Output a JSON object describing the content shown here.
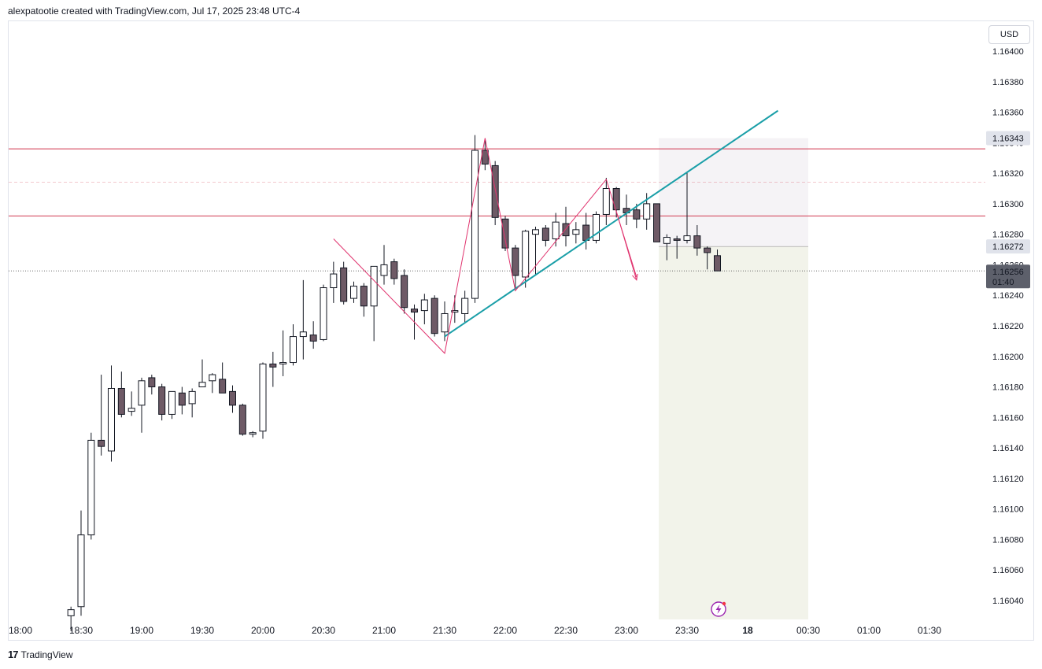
{
  "header": {
    "text": "alexpatootie created with TradingView.com, Jul 17, 2025 23:48 UTC-4"
  },
  "currency_label": "USD",
  "footer": {
    "logo": "17",
    "brand": "TradingView"
  },
  "colors": {
    "up_body": "#ffffff",
    "down_body": "#6e5a66",
    "candle_border": "#131722",
    "level_line": "#d0384f",
    "trend_line": "#1a9fa8",
    "pattern_line": "#e0336e",
    "short_risk_zone": "#f5f3f6",
    "short_target_zone": "#f2f3ea",
    "price_label_bg": "#e0e3eb",
    "current_price_bg": "#5d606b"
  },
  "chart_data": {
    "type": "candlestick",
    "title": "",
    "interval_minutes": 5,
    "x_range": [
      "17:55",
      "01:50"
    ],
    "ylim": [
      1.16026,
      1.16414
    ],
    "y_ticks": [
      "1.16040",
      "1.16060",
      "1.16080",
      "1.16100",
      "1.16120",
      "1.16140",
      "1.16160",
      "1.16180",
      "1.16200",
      "1.16220",
      "1.16240",
      "1.16260",
      "1.16280",
      "1.16300",
      "1.16320",
      "1.16340",
      "1.16360",
      "1.16380",
      "1.16400"
    ],
    "x_ticks": [
      {
        "t": "18:00",
        "label": "18:00"
      },
      {
        "t": "18:30",
        "label": "18:30"
      },
      {
        "t": "19:00",
        "label": "19:00"
      },
      {
        "t": "19:30",
        "label": "19:30"
      },
      {
        "t": "20:00",
        "label": "20:00"
      },
      {
        "t": "20:30",
        "label": "20:30"
      },
      {
        "t": "21:00",
        "label": "21:00"
      },
      {
        "t": "21:30",
        "label": "21:30"
      },
      {
        "t": "22:00",
        "label": "22:00"
      },
      {
        "t": "22:30",
        "label": "22:30"
      },
      {
        "t": "23:00",
        "label": "23:00"
      },
      {
        "t": "23:30",
        "label": "23:30"
      },
      {
        "t": "00:00",
        "label": "18",
        "bold": true
      },
      {
        "t": "00:30",
        "label": "00:30"
      },
      {
        "t": "01:00",
        "label": "01:00"
      },
      {
        "t": "01:30",
        "label": "01:30"
      }
    ],
    "candles": [
      {
        "t": "18:25",
        "o": 1.1603,
        "h": 1.16036,
        "l": 1.1602,
        "c": 1.16034
      },
      {
        "t": "18:30",
        "o": 1.16036,
        "h": 1.16099,
        "l": 1.1603,
        "c": 1.16083
      },
      {
        "t": "18:35",
        "o": 1.16083,
        "h": 1.1615,
        "l": 1.1608,
        "c": 1.16145
      },
      {
        "t": "18:40",
        "o": 1.16145,
        "h": 1.16188,
        "l": 1.16135,
        "c": 1.16141
      },
      {
        "t": "18:45",
        "o": 1.16138,
        "h": 1.16194,
        "l": 1.16131,
        "c": 1.16179
      },
      {
        "t": "18:50",
        "o": 1.16179,
        "h": 1.1619,
        "l": 1.1616,
        "c": 1.16162
      },
      {
        "t": "18:55",
        "o": 1.16164,
        "h": 1.16177,
        "l": 1.16161,
        "c": 1.16166
      },
      {
        "t": "19:00",
        "o": 1.16168,
        "h": 1.16186,
        "l": 1.1615,
        "c": 1.16184
      },
      {
        "t": "19:05",
        "o": 1.16186,
        "h": 1.16188,
        "l": 1.16175,
        "c": 1.1618
      },
      {
        "t": "19:10",
        "o": 1.1618,
        "h": 1.16182,
        "l": 1.16158,
        "c": 1.16162
      },
      {
        "t": "19:15",
        "o": 1.16162,
        "h": 1.16177,
        "l": 1.16159,
        "c": 1.16177
      },
      {
        "t": "19:20",
        "o": 1.16176,
        "h": 1.1618,
        "l": 1.16162,
        "c": 1.16168
      },
      {
        "t": "19:25",
        "o": 1.16169,
        "h": 1.16179,
        "l": 1.1616,
        "c": 1.16177
      },
      {
        "t": "19:30",
        "o": 1.1618,
        "h": 1.16198,
        "l": 1.1618,
        "c": 1.16183
      },
      {
        "t": "19:35",
        "o": 1.16184,
        "h": 1.16189,
        "l": 1.16176,
        "c": 1.16188
      },
      {
        "t": "19:40",
        "o": 1.16185,
        "h": 1.16196,
        "l": 1.16176,
        "c": 1.16176
      },
      {
        "t": "19:45",
        "o": 1.16177,
        "h": 1.16181,
        "l": 1.16163,
        "c": 1.16168
      },
      {
        "t": "19:50",
        "o": 1.16168,
        "h": 1.16169,
        "l": 1.16148,
        "c": 1.16149
      },
      {
        "t": "19:55",
        "o": 1.16149,
        "h": 1.16151,
        "l": 1.16147,
        "c": 1.1615
      },
      {
        "t": "20:00",
        "o": 1.16151,
        "h": 1.16196,
        "l": 1.16146,
        "c": 1.16195
      },
      {
        "t": "20:05",
        "o": 1.16195,
        "h": 1.16203,
        "l": 1.1618,
        "c": 1.16193
      },
      {
        "t": "20:10",
        "o": 1.16195,
        "h": 1.16217,
        "l": 1.16187,
        "c": 1.16196
      },
      {
        "t": "20:15",
        "o": 1.16196,
        "h": 1.16221,
        "l": 1.16194,
        "c": 1.16213
      },
      {
        "t": "20:20",
        "o": 1.16213,
        "h": 1.1625,
        "l": 1.16198,
        "c": 1.16216
      },
      {
        "t": "20:25",
        "o": 1.16214,
        "h": 1.16223,
        "l": 1.16205,
        "c": 1.1621
      },
      {
        "t": "20:30",
        "o": 1.16211,
        "h": 1.16247,
        "l": 1.1621,
        "c": 1.16245
      },
      {
        "t": "20:35",
        "o": 1.16245,
        "h": 1.16262,
        "l": 1.16235,
        "c": 1.16254
      },
      {
        "t": "20:40",
        "o": 1.16258,
        "h": 1.16262,
        "l": 1.16234,
        "c": 1.16236
      },
      {
        "t": "20:45",
        "o": 1.16238,
        "h": 1.16249,
        "l": 1.16235,
        "c": 1.16246
      },
      {
        "t": "20:50",
        "o": 1.16246,
        "h": 1.16248,
        "l": 1.16226,
        "c": 1.16233
      },
      {
        "t": "20:55",
        "o": 1.16233,
        "h": 1.16259,
        "l": 1.1621,
        "c": 1.16259
      },
      {
        "t": "21:00",
        "o": 1.16253,
        "h": 1.16273,
        "l": 1.16247,
        "c": 1.1626
      },
      {
        "t": "21:05",
        "o": 1.16262,
        "h": 1.16264,
        "l": 1.16247,
        "c": 1.16251
      },
      {
        "t": "21:10",
        "o": 1.16253,
        "h": 1.16257,
        "l": 1.16228,
        "c": 1.16232
      },
      {
        "t": "21:15",
        "o": 1.16231,
        "h": 1.16234,
        "l": 1.16211,
        "c": 1.16229
      },
      {
        "t": "21:20",
        "o": 1.1623,
        "h": 1.16241,
        "l": 1.16221,
        "c": 1.16237
      },
      {
        "t": "21:25",
        "o": 1.16238,
        "h": 1.1624,
        "l": 1.16213,
        "c": 1.16215
      },
      {
        "t": "21:30",
        "o": 1.16216,
        "h": 1.16236,
        "l": 1.1621,
        "c": 1.16228
      },
      {
        "t": "21:35",
        "o": 1.16229,
        "h": 1.1624,
        "l": 1.16222,
        "c": 1.1623
      },
      {
        "t": "21:40",
        "o": 1.16228,
        "h": 1.16243,
        "l": 1.16222,
        "c": 1.16238
      },
      {
        "t": "21:45",
        "o": 1.16238,
        "h": 1.16345,
        "l": 1.16235,
        "c": 1.16335
      },
      {
        "t": "21:50",
        "o": 1.16335,
        "h": 1.16342,
        "l": 1.16322,
        "c": 1.16326
      },
      {
        "t": "21:55",
        "o": 1.16325,
        "h": 1.16328,
        "l": 1.16286,
        "c": 1.16291
      },
      {
        "t": "22:00",
        "o": 1.1629,
        "h": 1.16292,
        "l": 1.16269,
        "c": 1.16271
      },
      {
        "t": "22:05",
        "o": 1.16271,
        "h": 1.16273,
        "l": 1.16244,
        "c": 1.16253
      },
      {
        "t": "22:10",
        "o": 1.16252,
        "h": 1.16283,
        "l": 1.16245,
        "c": 1.16282
      },
      {
        "t": "22:15",
        "o": 1.1628,
        "h": 1.16285,
        "l": 1.16253,
        "c": 1.16283
      },
      {
        "t": "22:20",
        "o": 1.16284,
        "h": 1.16286,
        "l": 1.16272,
        "c": 1.16276
      },
      {
        "t": "22:25",
        "o": 1.16277,
        "h": 1.16294,
        "l": 1.16272,
        "c": 1.16288
      },
      {
        "t": "22:30",
        "o": 1.16287,
        "h": 1.16298,
        "l": 1.16272,
        "c": 1.16279
      },
      {
        "t": "22:35",
        "o": 1.1628,
        "h": 1.16288,
        "l": 1.16274,
        "c": 1.16283
      },
      {
        "t": "22:40",
        "o": 1.16286,
        "h": 1.16294,
        "l": 1.1627,
        "c": 1.16276
      },
      {
        "t": "22:45",
        "o": 1.16276,
        "h": 1.16295,
        "l": 1.16274,
        "c": 1.16293
      },
      {
        "t": "22:50",
        "o": 1.16293,
        "h": 1.16317,
        "l": 1.16286,
        "c": 1.1631
      },
      {
        "t": "22:55",
        "o": 1.1631,
        "h": 1.16311,
        "l": 1.16291,
        "c": 1.16296
      },
      {
        "t": "23:00",
        "o": 1.16297,
        "h": 1.16306,
        "l": 1.16286,
        "c": 1.16294
      },
      {
        "t": "23:05",
        "o": 1.16296,
        "h": 1.163,
        "l": 1.16284,
        "c": 1.1629
      },
      {
        "t": "23:10",
        "o": 1.1629,
        "h": 1.16307,
        "l": 1.16283,
        "c": 1.163
      },
      {
        "t": "23:15",
        "o": 1.163,
        "h": 1.163,
        "l": 1.16275,
        "c": 1.16275
      },
      {
        "t": "23:20",
        "o": 1.16274,
        "h": 1.1628,
        "l": 1.16263,
        "c": 1.16278
      },
      {
        "t": "23:25",
        "o": 1.16277,
        "h": 1.16279,
        "l": 1.16264,
        "c": 1.16276
      },
      {
        "t": "23:30",
        "o": 1.16276,
        "h": 1.16321,
        "l": 1.16274,
        "c": 1.16279
      },
      {
        "t": "23:35",
        "o": 1.16279,
        "h": 1.16286,
        "l": 1.16266,
        "c": 1.16271
      },
      {
        "t": "23:40",
        "o": 1.16271,
        "h": 1.16272,
        "l": 1.16257,
        "c": 1.16268
      },
      {
        "t": "23:45",
        "o": 1.16266,
        "h": 1.1627,
        "l": 1.16256,
        "c": 1.16256
      }
    ],
    "price_labels": [
      {
        "value": 1.16343,
        "text": "1.16343"
      },
      {
        "value": 1.16272,
        "text": "1.16272"
      }
    ],
    "current_price": {
      "value": 1.16256,
      "text": "1.16256",
      "countdown": "01:40"
    },
    "horizontal_lines": [
      {
        "value": 1.16336,
        "style": "solid"
      },
      {
        "value": 1.16314,
        "style": "dashed"
      },
      {
        "value": 1.16292,
        "style": "solid"
      }
    ],
    "trend_line": {
      "from": {
        "t": "21:30",
        "v": 1.16213
      },
      "to": {
        "t": "00:15",
        "v": 1.16361
      }
    },
    "pattern_lines": [
      [
        {
          "t": "20:35",
          "v": 1.16277
        },
        {
          "t": "21:30",
          "v": 1.16202
        },
        {
          "t": "21:50",
          "v": 1.16343
        },
        {
          "t": "22:05",
          "v": 1.16243
        },
        {
          "t": "22:50",
          "v": 1.16316
        },
        {
          "t": "23:05",
          "v": 1.16252
        }
      ]
    ],
    "pattern_arrow": {
      "from": {
        "t": "22:55",
        "v": 1.16295
      },
      "to": {
        "t": "23:05",
        "v": 1.1625
      }
    },
    "short_position": {
      "t_start": "23:16",
      "t_end": "00:30",
      "entry": 1.16272,
      "stop": 1.16343,
      "target": 1.16026
    }
  }
}
